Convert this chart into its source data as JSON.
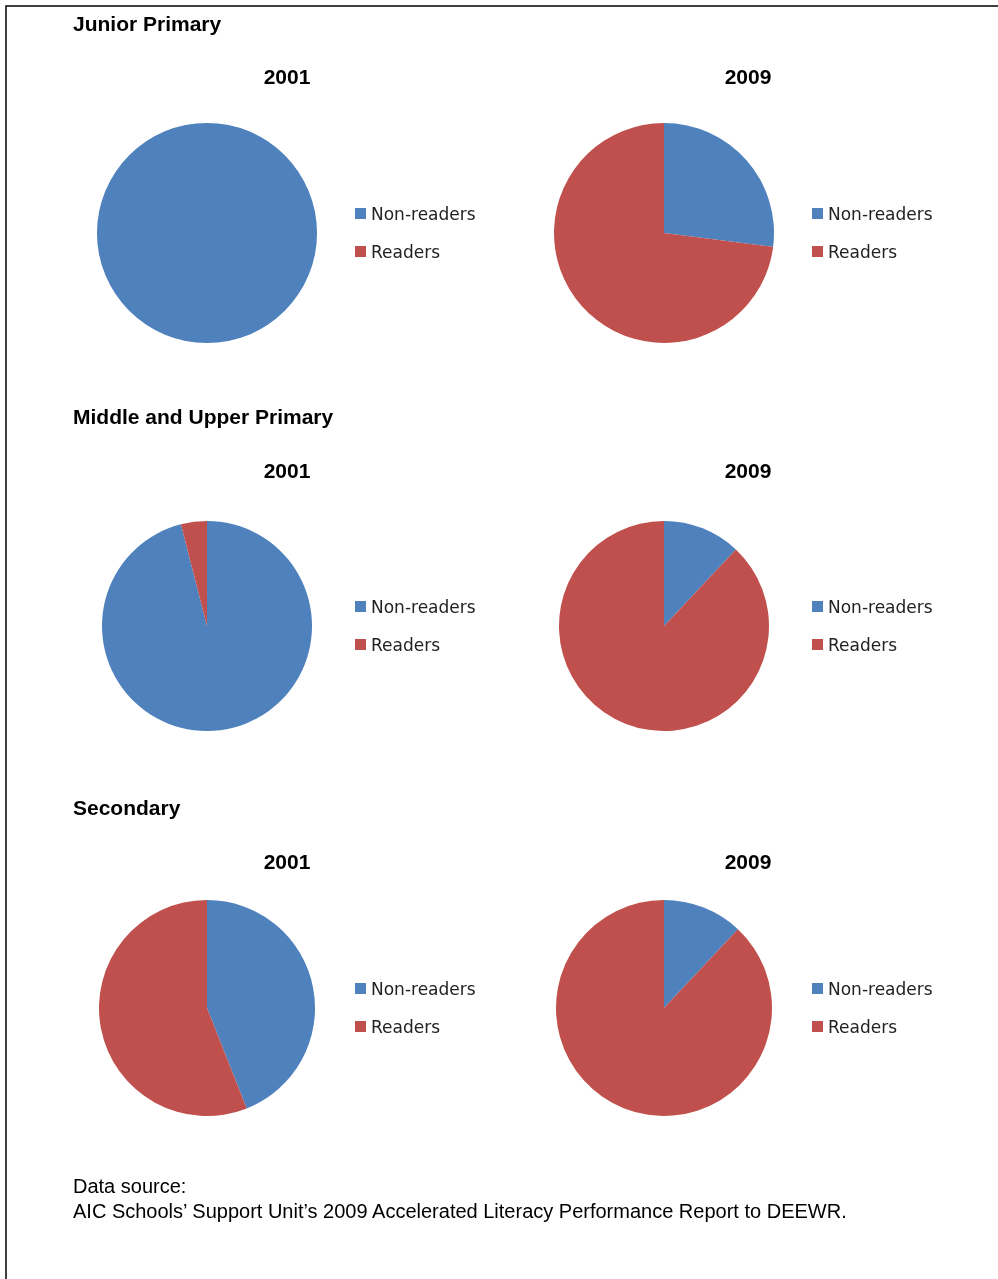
{
  "chart_data": [
    {
      "type": "pie",
      "subtitle": "Junior Primary",
      "title": "2001",
      "categories": [
        "Non-readers",
        "Readers"
      ],
      "values": [
        100,
        0
      ],
      "colors": [
        "#4f81bd",
        "#c0504d"
      ],
      "legend": "right"
    },
    {
      "type": "pie",
      "title": "2009",
      "categories": [
        "Non-readers",
        "Readers"
      ],
      "values": [
        27,
        73
      ],
      "colors": [
        "#4f81bd",
        "#c0504d"
      ],
      "legend": "right"
    },
    {
      "type": "pie",
      "subtitle": "Middle and Upper Primary",
      "title": "2001",
      "categories": [
        "Non-readers",
        "Readers"
      ],
      "values": [
        96,
        4
      ],
      "colors": [
        "#4f81bd",
        "#c0504d"
      ],
      "legend": "right"
    },
    {
      "type": "pie",
      "title": "2009",
      "categories": [
        "Non-readers",
        "Readers"
      ],
      "values": [
        12,
        88
      ],
      "colors": [
        "#4f81bd",
        "#c0504d"
      ],
      "legend": "right"
    },
    {
      "type": "pie",
      "subtitle": "Secondary",
      "title": "2001",
      "categories": [
        "Non-readers",
        "Readers"
      ],
      "values": [
        44,
        56
      ],
      "colors": [
        "#4f81bd",
        "#c0504d"
      ],
      "legend": "right"
    },
    {
      "type": "pie",
      "title": "2009",
      "categories": [
        "Non-readers",
        "Readers"
      ],
      "values": [
        12,
        88
      ],
      "colors": [
        "#4f81bd",
        "#c0504d"
      ],
      "legend": "right",
      "annotations": [
        "Data source:",
        "AIC Schools’ Support Unit’s 2009 Accelerated Literacy Performance Report to DEEWR."
      ]
    }
  ]
}
